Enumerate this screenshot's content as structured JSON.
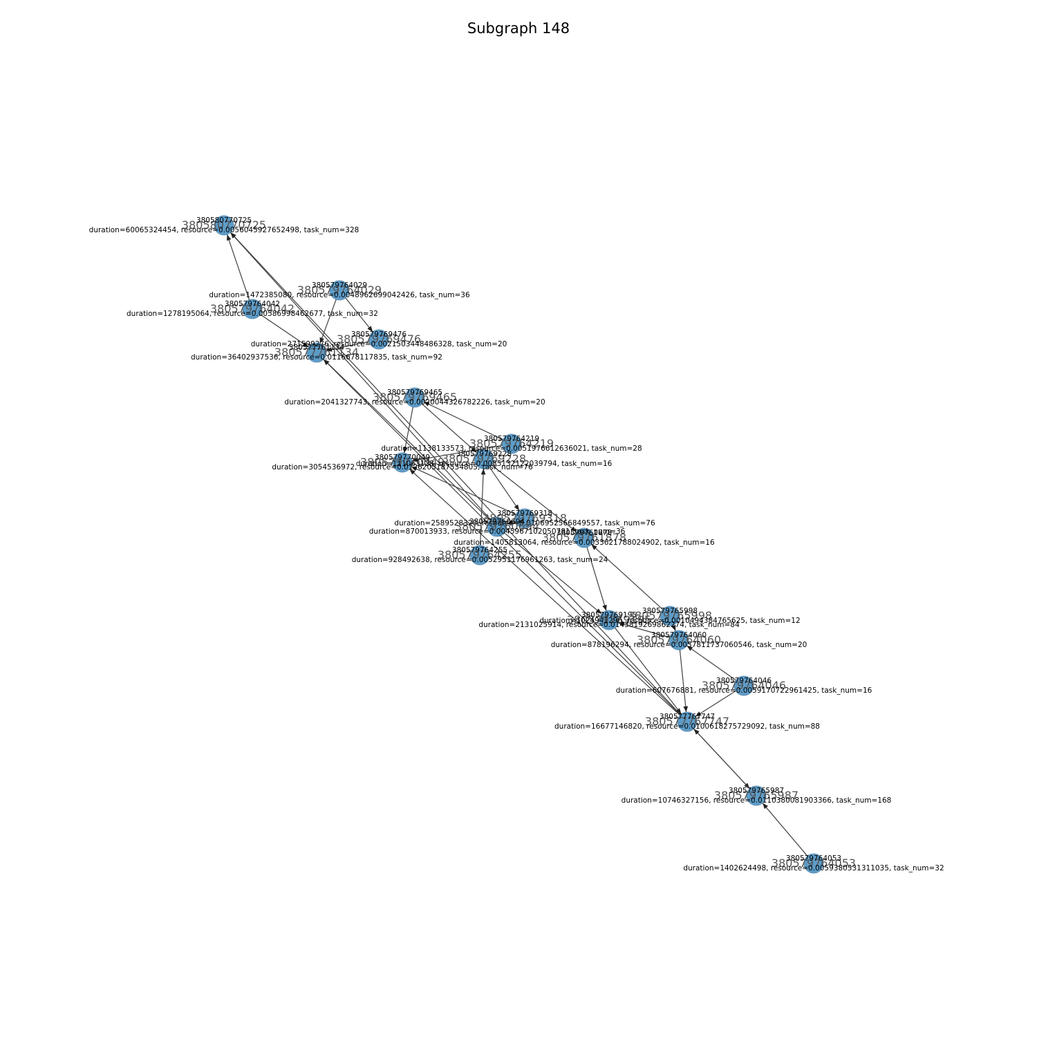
{
  "title": "Subgraph 148",
  "colors": {
    "node": "#1f77b4",
    "edge": "#404040",
    "background": "#ffffff"
  },
  "nodes": [
    {
      "id": "380580770725",
      "desc": "duration=60065324454, resource=0.0056045927652498, task_num=328"
    },
    {
      "id": "380579764029",
      "desc": "duration=1472385080, resource=0.0048962699042426, task_num=36"
    },
    {
      "id": "380579764042",
      "desc": "duration=1278195064, resource=0.00586998462677, task_num=32"
    },
    {
      "id": "380579769476",
      "desc": "duration=271599276, resource=0.0021503448486328, task_num=20"
    },
    {
      "id": "380577761134",
      "desc": "duration=36402937536, resource=0.0116678117835, task_num=92"
    },
    {
      "id": "380579769465",
      "desc": "duration=2041327743, resource=0.0020044326782226, task_num=20"
    },
    {
      "id": "380579764219",
      "desc": "duration=1138133573, resource=0.0051976612636021, task_num=28"
    },
    {
      "id": "380579770049",
      "desc": "duration=3054536972, resource=0.0126205187534805, task_num=76"
    },
    {
      "id": "380579769228",
      "desc": "duration=111063128, resource=0.0085132122039794, task_num=16"
    },
    {
      "id": "380579769318",
      "desc": "duration=2589528320, resource=0.0106952566849557, task_num=76"
    },
    {
      "id": "380579760694",
      "desc": "duration=870013933, resource=0.0045967102050781, task_num=36"
    },
    {
      "id": "380579761878",
      "desc": "duration=1405813064, resource=0.0033621788024902, task_num=16"
    },
    {
      "id": "380579764255",
      "desc": "duration=928492638, resource=0.0052951176961263, task_num=24"
    },
    {
      "id": "380579769195",
      "desc": "duration=2131025914, resource=0.0143819269862274, task_num=84"
    },
    {
      "id": "380579765998",
      "desc": "duration=1024941296, resource=0.0010494384765625, task_num=12"
    },
    {
      "id": "380579764060",
      "desc": "duration=878196294, resource=0.0057811737060546, task_num=20"
    },
    {
      "id": "380579764046",
      "desc": "duration=607676881, resource=0.0059170722961425, task_num=16"
    },
    {
      "id": "380577767747",
      "desc": "duration=16677146820, resource=0.0100618275729092, task_num=88"
    },
    {
      "id": "380579765987",
      "desc": "duration=10746327156, resource=0.0110380081903366, task_num=168"
    },
    {
      "id": "380579764053",
      "desc": "duration=1402624498, resource=0.0059380531311035, task_num=32"
    }
  ]
}
